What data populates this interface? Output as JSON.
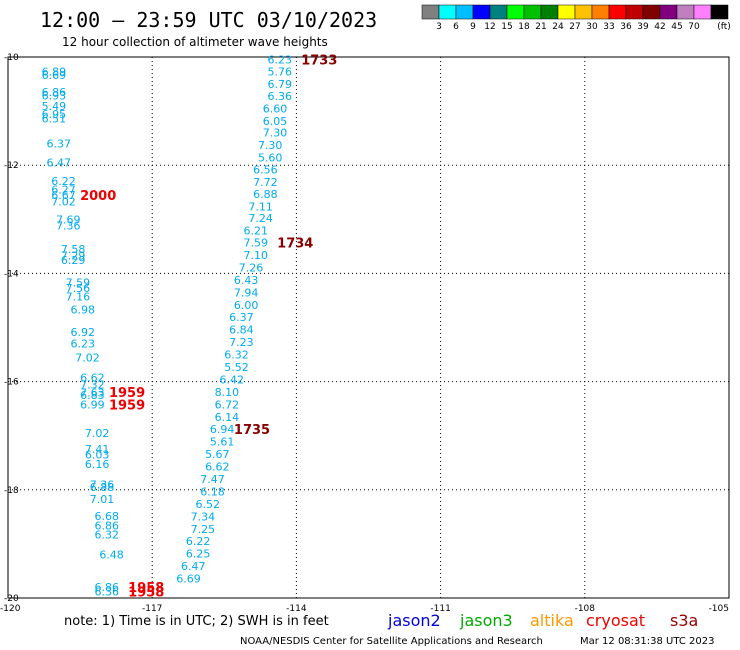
{
  "header": {
    "title": "12:00 – 23:59 UTC 03/10/2023",
    "subtitle": "12 hour collection of altimeter wave heights"
  },
  "legend": {
    "colors": [
      "#808080",
      "#00ffff",
      "#00bfff",
      "#0000ff",
      "#008080",
      "#00ff00",
      "#00c000",
      "#008000",
      "#ffff00",
      "#ffc000",
      "#ff8000",
      "#ff0000",
      "#c00000",
      "#800000",
      "#800080",
      "#c080c0",
      "#ff80ff",
      "#000000"
    ],
    "labels": [
      "3",
      "6",
      "9",
      "12",
      "15",
      "18",
      "21",
      "24",
      "27",
      "30",
      "33",
      "36",
      "39",
      "42",
      "45",
      "70"
    ],
    "unit": "(ft)"
  },
  "note": "note:  1) Time is in UTC; 2) SWH is in feet",
  "satellites": [
    {
      "name": "jason2",
      "color": "#0000dd"
    },
    {
      "name": "jason3",
      "color": "#00aa00"
    },
    {
      "name": "altika",
      "color": "#ff9900"
    },
    {
      "name": "cryosat",
      "color": "#ee0000"
    },
    {
      "name": "s3a",
      "color": "#990000"
    }
  ],
  "footer": {
    "credit": "NOAA/NESDIS Center for Satellite Applications and Research",
    "timestamp": "Mar 12 08:31:38 UTC 2023"
  },
  "chart_data": {
    "type": "scatter",
    "xlim": [
      -120,
      -105
    ],
    "ylim": [
      -20,
      -10
    ],
    "x_ticks": [
      -120,
      -117,
      -114,
      -111,
      -108,
      -105
    ],
    "y_ticks": [
      -10,
      -12,
      -14,
      -16,
      -18,
      -20
    ],
    "x_tick_labels": [
      "-120",
      "-117",
      "-114",
      "-111",
      "-108",
      "-105"
    ],
    "y_tick_labels": [
      "-10",
      "-12",
      "-14",
      "-16",
      "-18",
      "-20"
    ],
    "grid": true,
    "series": [
      {
        "color": "#00aaee",
        "points": [
          {
            "x": -119.3,
            "y": -10.27,
            "v": "6.89"
          },
          {
            "x": -119.3,
            "y": -10.33,
            "v": "6.69"
          },
          {
            "x": -119.3,
            "y": -10.65,
            "v": "6.86"
          },
          {
            "x": -119.3,
            "y": -10.71,
            "v": "6.93"
          },
          {
            "x": -119.3,
            "y": -10.91,
            "v": "5.49"
          },
          {
            "x": -119.3,
            "y": -11.05,
            "v": "6.95"
          },
          {
            "x": -119.3,
            "y": -11.14,
            "v": "6.51"
          },
          {
            "x": -119.2,
            "y": -11.6,
            "v": "6.37"
          },
          {
            "x": -119.2,
            "y": -11.95,
            "v": "6.47"
          },
          {
            "x": -119.1,
            "y": -12.29,
            "v": "6.22"
          },
          {
            "x": -119.1,
            "y": -12.45,
            "v": "6.27"
          },
          {
            "x": -119.1,
            "y": -12.55,
            "v": "6.67"
          },
          {
            "x": -119.1,
            "y": -12.67,
            "v": "7.02"
          },
          {
            "x": -119.0,
            "y": -13.0,
            "v": "7.69"
          },
          {
            "x": -119.0,
            "y": -13.11,
            "v": "7.36"
          },
          {
            "x": -118.9,
            "y": -13.55,
            "v": "7.58"
          },
          {
            "x": -118.9,
            "y": -13.67,
            "v": "7.29"
          },
          {
            "x": -118.9,
            "y": -13.75,
            "v": "6.29"
          },
          {
            "x": -118.8,
            "y": -14.17,
            "v": "7.59"
          },
          {
            "x": -118.8,
            "y": -14.27,
            "v": "7.56"
          },
          {
            "x": -118.8,
            "y": -14.43,
            "v": "7.16"
          },
          {
            "x": -118.7,
            "y": -14.67,
            "v": "6.98"
          },
          {
            "x": -118.7,
            "y": -15.08,
            "v": "6.92"
          },
          {
            "x": -118.7,
            "y": -15.3,
            "v": "6.23"
          },
          {
            "x": -118.6,
            "y": -15.55,
            "v": "7.02"
          },
          {
            "x": -118.5,
            "y": -15.92,
            "v": "6.62"
          },
          {
            "x": -118.5,
            "y": -16.05,
            "v": "7.32"
          },
          {
            "x": -118.5,
            "y": -16.2,
            "v": "7.63"
          },
          {
            "x": -118.5,
            "y": -16.25,
            "v": "6.83"
          },
          {
            "x": -118.5,
            "y": -16.42,
            "v": "6.99"
          },
          {
            "x": -118.4,
            "y": -16.95,
            "v": "7.02"
          },
          {
            "x": -118.4,
            "y": -17.25,
            "v": "7.41"
          },
          {
            "x": -118.4,
            "y": -17.35,
            "v": "6.03"
          },
          {
            "x": -118.4,
            "y": -17.52,
            "v": "6.16"
          },
          {
            "x": -118.3,
            "y": -17.9,
            "v": "7.36"
          },
          {
            "x": -118.3,
            "y": -17.95,
            "v": "6.88"
          },
          {
            "x": -118.3,
            "y": -18.17,
            "v": "7.01"
          },
          {
            "x": -118.2,
            "y": -18.48,
            "v": "6.68"
          },
          {
            "x": -118.2,
            "y": -18.66,
            "v": "6.86"
          },
          {
            "x": -118.2,
            "y": -18.83,
            "v": "6.32"
          },
          {
            "x": -118.1,
            "y": -19.2,
            "v": "6.48"
          },
          {
            "x": -118.2,
            "y": -19.8,
            "v": "6.86"
          },
          {
            "x": -118.2,
            "y": -19.88,
            "v": "6.36"
          }
        ]
      },
      {
        "color": "#00aaee",
        "points": [
          {
            "x": -114.6,
            "y": -10.05,
            "v": "6.23"
          },
          {
            "x": -114.6,
            "y": -10.27,
            "v": "5.76"
          },
          {
            "x": -114.6,
            "y": -10.5,
            "v": "6.79"
          },
          {
            "x": -114.6,
            "y": -10.72,
            "v": "6.36"
          },
          {
            "x": -114.7,
            "y": -10.95,
            "v": "6.60"
          },
          {
            "x": -114.7,
            "y": -11.18,
            "v": "6.05"
          },
          {
            "x": -114.7,
            "y": -11.4,
            "v": "7.30"
          },
          {
            "x": -114.8,
            "y": -11.63,
            "v": "7.30"
          },
          {
            "x": -114.8,
            "y": -11.86,
            "v": "5.60"
          },
          {
            "x": -114.9,
            "y": -12.08,
            "v": "6.56"
          },
          {
            "x": -114.9,
            "y": -12.31,
            "v": "7.72"
          },
          {
            "x": -114.9,
            "y": -12.53,
            "v": "6.88"
          },
          {
            "x": -115.0,
            "y": -12.76,
            "v": "7.11"
          },
          {
            "x": -115.0,
            "y": -12.98,
            "v": "7.24"
          },
          {
            "x": -115.1,
            "y": -13.21,
            "v": "6.21"
          },
          {
            "x": -115.1,
            "y": -13.43,
            "v": "7.59"
          },
          {
            "x": -115.1,
            "y": -13.66,
            "v": "7.10"
          },
          {
            "x": -115.2,
            "y": -13.89,
            "v": "7.26"
          },
          {
            "x": -115.3,
            "y": -14.12,
            "v": "6.43"
          },
          {
            "x": -115.3,
            "y": -14.35,
            "v": "7.94"
          },
          {
            "x": -115.3,
            "y": -14.58,
            "v": "6.00"
          },
          {
            "x": -115.4,
            "y": -14.81,
            "v": "6.37"
          },
          {
            "x": -115.4,
            "y": -15.04,
            "v": "6.84"
          },
          {
            "x": -115.4,
            "y": -15.27,
            "v": "7.23"
          },
          {
            "x": -115.5,
            "y": -15.5,
            "v": "6.32"
          },
          {
            "x": -115.5,
            "y": -15.73,
            "v": "5.52"
          },
          {
            "x": -115.6,
            "y": -15.96,
            "v": "6.42"
          },
          {
            "x": -115.7,
            "y": -16.19,
            "v": "8.10"
          },
          {
            "x": -115.7,
            "y": -16.42,
            "v": "6.72"
          },
          {
            "x": -115.7,
            "y": -16.65,
            "v": "6.14"
          },
          {
            "x": -115.8,
            "y": -16.88,
            "v": "6.94"
          },
          {
            "x": -115.8,
            "y": -17.11,
            "v": "5.61"
          },
          {
            "x": -115.9,
            "y": -17.34,
            "v": "5.67"
          },
          {
            "x": -115.9,
            "y": -17.57,
            "v": "6.62"
          },
          {
            "x": -116.0,
            "y": -17.8,
            "v": "7.47"
          },
          {
            "x": -116.0,
            "y": -18.03,
            "v": "6.18"
          },
          {
            "x": -116.1,
            "y": -18.26,
            "v": "6.52"
          },
          {
            "x": -116.2,
            "y": -18.49,
            "v": "7.34"
          },
          {
            "x": -116.2,
            "y": -18.72,
            "v": "7.25"
          },
          {
            "x": -116.3,
            "y": -18.95,
            "v": "6.22"
          },
          {
            "x": -116.3,
            "y": -19.18,
            "v": "6.25"
          },
          {
            "x": -116.4,
            "y": -19.41,
            "v": "6.47"
          },
          {
            "x": -116.5,
            "y": -19.64,
            "v": "6.69"
          }
        ]
      }
    ],
    "time_labels": [
      {
        "x": -113.9,
        "y": -10.05,
        "t": "1733",
        "color": "#880000"
      },
      {
        "x": -114.4,
        "y": -13.43,
        "t": "1734",
        "color": "#880000"
      },
      {
        "x": -115.3,
        "y": -16.88,
        "t": "1735",
        "color": "#880000"
      },
      {
        "x": -118.5,
        "y": -12.55,
        "t": "2000",
        "color": "#ee0000"
      },
      {
        "x": -117.9,
        "y": -16.19,
        "t": "1959",
        "color": "#ee0000"
      },
      {
        "x": -117.9,
        "y": -16.42,
        "t": "1959",
        "color": "#ee0000"
      },
      {
        "x": -117.5,
        "y": -19.8,
        "t": "1958",
        "color": "#ee0000"
      },
      {
        "x": -117.5,
        "y": -19.88,
        "t": "1958",
        "color": "#ee0000"
      }
    ]
  }
}
